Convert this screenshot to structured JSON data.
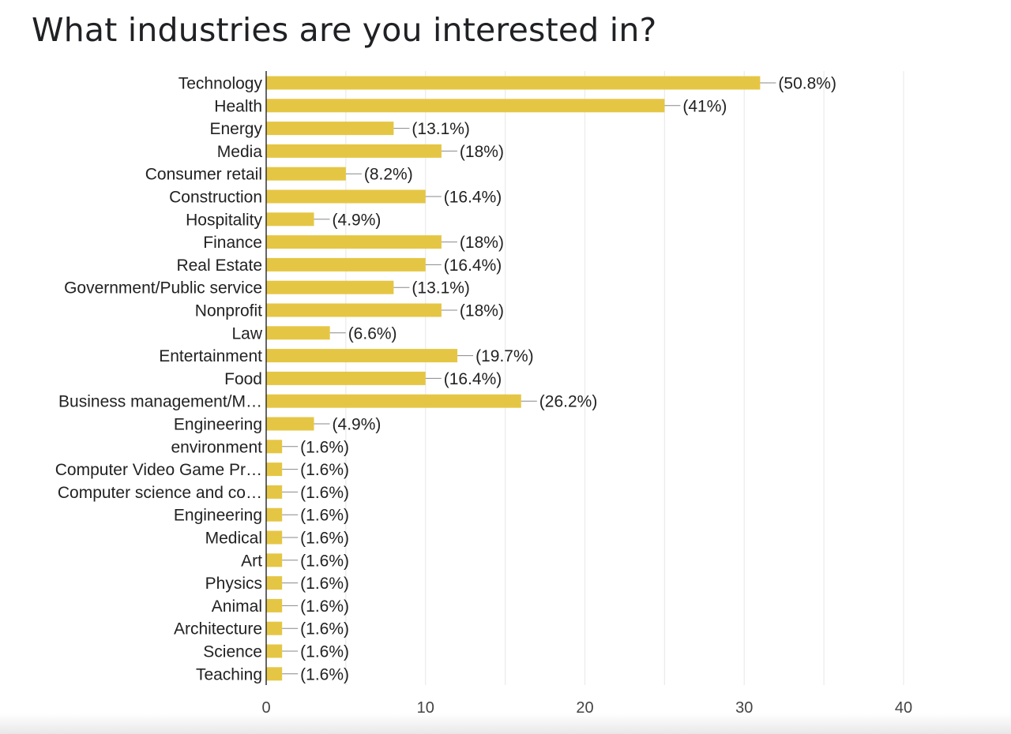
{
  "chart_data": {
    "type": "bar",
    "orientation": "horizontal",
    "title": "What industries are you interested in?",
    "xlabel": "",
    "ylabel": "",
    "xlim": [
      0,
      40
    ],
    "xticks": [
      0,
      10,
      20,
      30,
      40
    ],
    "grid": true,
    "bar_color": "#E5C644",
    "categories": [
      "Technology",
      "Health",
      "Energy",
      "Media",
      "Consumer retail",
      "Construction",
      "Hospitality",
      "Finance",
      "Real Estate",
      "Government/Public service",
      "Nonprofit",
      "Law",
      "Entertainment",
      "Food",
      "Business management/M…",
      "Engineering",
      "environment",
      "Computer Video Game Pr…",
      "Computer science and co…",
      "Engineering",
      "Medical",
      "Art",
      "Physics",
      "Animal",
      "Architecture",
      "Science",
      "Teaching"
    ],
    "values": [
      31,
      25,
      8,
      11,
      5,
      10,
      3,
      11,
      10,
      8,
      11,
      4,
      12,
      10,
      16,
      3,
      1,
      1,
      1,
      1,
      1,
      1,
      1,
      1,
      1,
      1,
      1
    ],
    "labels": [
      "(50.8%)",
      "(41%)",
      "(13.1%)",
      "(18%)",
      "(8.2%)",
      "(16.4%)",
      "(4.9%)",
      "(18%)",
      "(16.4%)",
      "(13.1%)",
      "(18%)",
      "(6.6%)",
      "(19.7%)",
      "(16.4%)",
      "(26.2%)",
      "(4.9%)",
      "(1.6%)",
      "(1.6%)",
      "(1.6%)",
      "(1.6%)",
      "(1.6%)",
      "(1.6%)",
      "(1.6%)",
      "(1.6%)",
      "(1.6%)",
      "(1.6%)",
      "(1.6%)"
    ]
  }
}
